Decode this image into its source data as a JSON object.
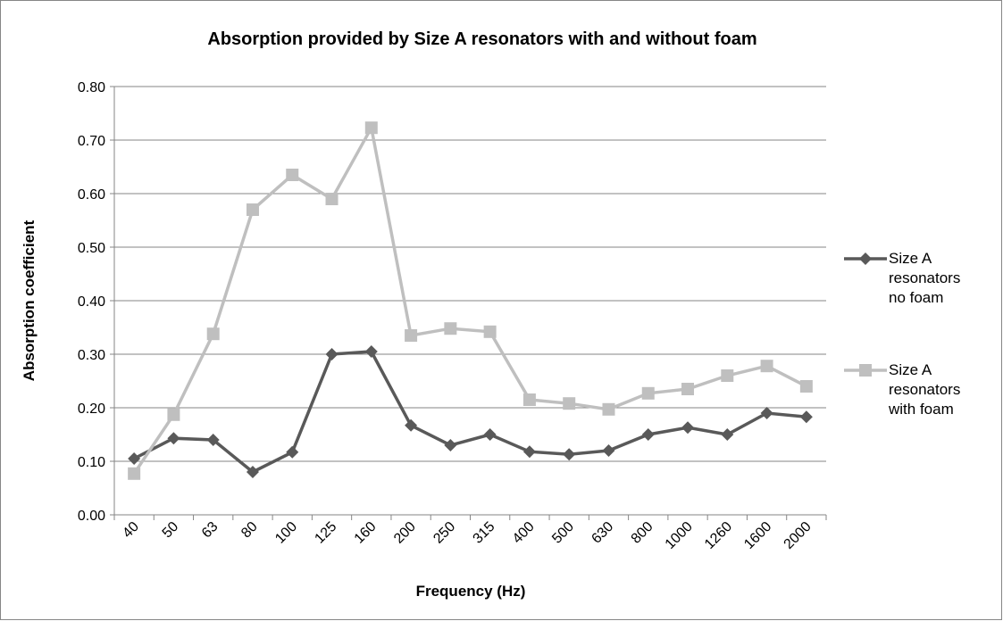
{
  "chart_data": {
    "type": "line",
    "title": "Absorption provided by Size A resonators with and without foam",
    "x_label": "Frequency (Hz)",
    "y_label": "Absorption coefficient",
    "categories": [
      "40",
      "50",
      "63",
      "80",
      "100",
      "125",
      "160",
      "200",
      "250",
      "315",
      "400",
      "500",
      "630",
      "800",
      "1000",
      "1260",
      "1600",
      "2000"
    ],
    "series": [
      {
        "name": "Size A resonators no foam",
        "color": "#595959",
        "marker": "diamond",
        "values": [
          0.105,
          0.143,
          0.14,
          0.08,
          0.117,
          0.3,
          0.305,
          0.167,
          0.13,
          0.15,
          0.118,
          0.113,
          0.12,
          0.15,
          0.163,
          0.15,
          0.19,
          0.183
        ]
      },
      {
        "name": "Size A resonators with foam",
        "color": "#bfbfbf",
        "marker": "square",
        "values": [
          0.077,
          0.187,
          0.338,
          0.57,
          0.635,
          0.59,
          0.723,
          0.335,
          0.348,
          0.342,
          0.215,
          0.208,
          0.197,
          0.227,
          0.235,
          0.26,
          0.278,
          0.24
        ]
      }
    ],
    "ylim": [
      0,
      0.8
    ],
    "yticks": [
      {
        "value": 0,
        "label": "0.00"
      },
      {
        "value": 0.1,
        "label": "0.10"
      },
      {
        "value": 0.2,
        "label": "0.20"
      },
      {
        "value": 0.3,
        "label": "0.30"
      },
      {
        "value": 0.4,
        "label": "0.40"
      },
      {
        "value": 0.5,
        "label": "0.50"
      },
      {
        "value": 0.6,
        "label": "0.60"
      },
      {
        "value": 0.7,
        "label": "0.70"
      },
      {
        "value": 0.8,
        "label": "0.80"
      }
    ],
    "grid": true,
    "legend": "right"
  }
}
